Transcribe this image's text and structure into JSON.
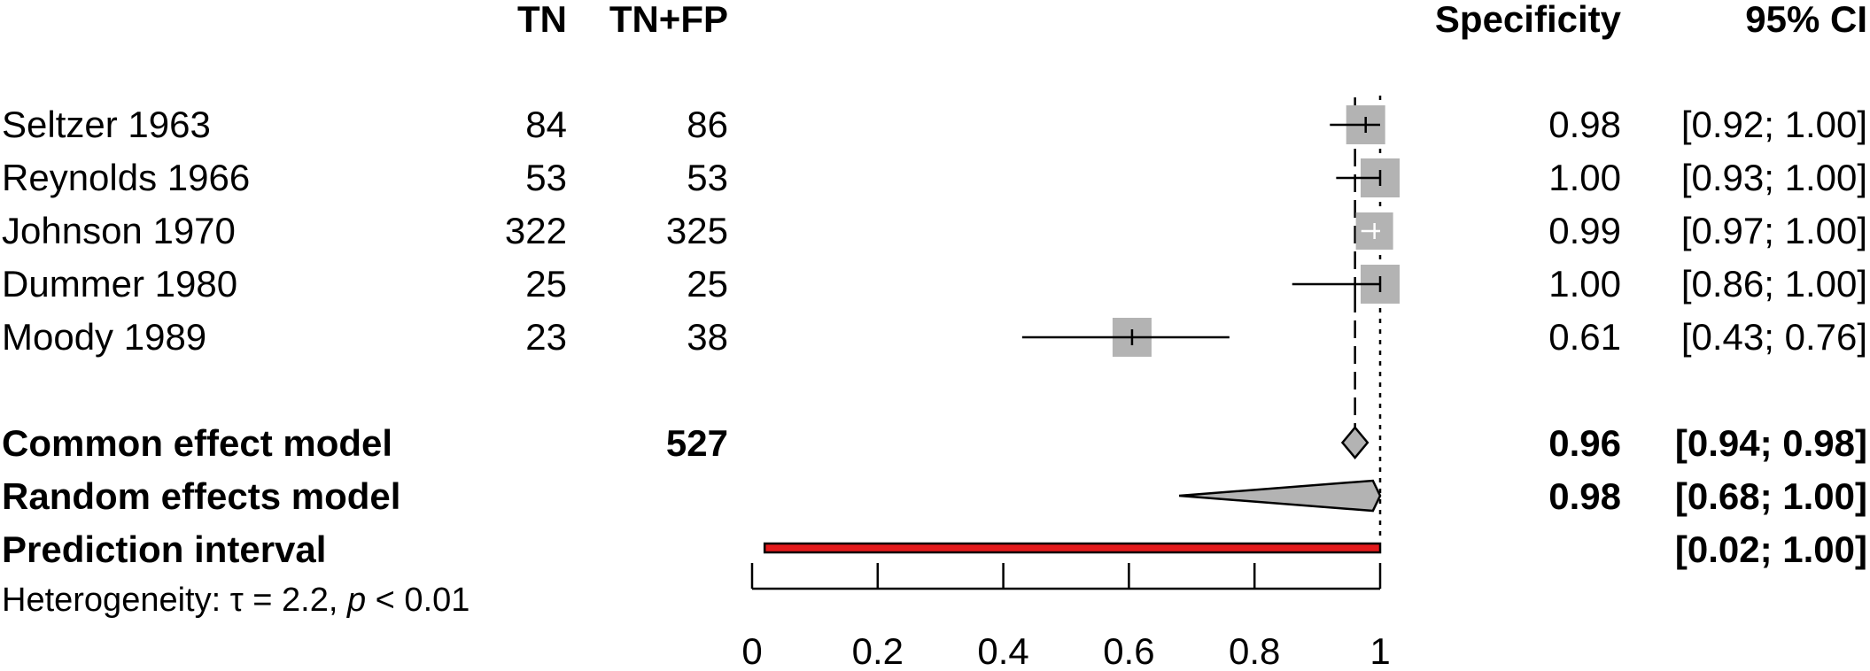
{
  "headers": {
    "tn": "TN",
    "tn_fp": "TN+FP",
    "specificity": "Specificity",
    "ci": "95% CI"
  },
  "chart_data": {
    "type": "forest",
    "xlim": [
      0,
      1
    ],
    "x_ticks": [
      "0",
      "0.2",
      "0.4",
      "0.6",
      "0.8",
      "1"
    ],
    "studies": [
      {
        "label": "Seltzer 1963",
        "tn": "84",
        "tn_fp": "86",
        "spec": 0.977,
        "lower": 0.92,
        "upper": 1.0,
        "spec_text": "0.98",
        "ci_text": "[0.92; 1.00]"
      },
      {
        "label": "Reynolds 1966",
        "tn": "53",
        "tn_fp": "53",
        "spec": 1.0,
        "lower": 0.93,
        "upper": 1.0,
        "spec_text": "1.00",
        "ci_text": "[0.93; 1.00]"
      },
      {
        "label": "Johnson 1970",
        "tn": "322",
        "tn_fp": "325",
        "spec": 0.991,
        "lower": 0.97,
        "upper": 1.0,
        "spec_text": "0.99",
        "ci_text": "[0.97; 1.00]"
      },
      {
        "label": "Dummer 1980",
        "tn": "25",
        "tn_fp": "25",
        "spec": 1.0,
        "lower": 0.86,
        "upper": 1.0,
        "spec_text": "1.00",
        "ci_text": "[0.86; 1.00]"
      },
      {
        "label": "Moody 1989",
        "tn": "23",
        "tn_fp": "38",
        "spec": 0.605,
        "lower": 0.43,
        "upper": 0.76,
        "spec_text": "0.61",
        "ci_text": "[0.43; 0.76]"
      }
    ],
    "common": {
      "label": "Common effect model",
      "total": "527",
      "est": 0.96,
      "lower": 0.94,
      "upper": 0.98,
      "spec_text": "0.96",
      "ci_text": "[0.94; 0.98]"
    },
    "random": {
      "label": "Random effects model",
      "est": 0.98,
      "lower": 0.68,
      "upper": 1.0,
      "spec_text": "0.98",
      "ci_text": "[0.68; 1.00]"
    },
    "prediction": {
      "label": "Prediction interval",
      "lower": 0.02,
      "upper": 1.0,
      "ci_text": "[0.02; 1.00]"
    },
    "heterogeneity": {
      "prefix": "Heterogeneity: ",
      "tau_sym": "τ",
      "tau_text": " = 2.2, ",
      "p_sym": "p",
      "p_text": " < 0.01"
    },
    "colors": {
      "square": "#b3b3b3",
      "diamond": "#b3b3b3",
      "prediction": "#e41a1c"
    }
  }
}
